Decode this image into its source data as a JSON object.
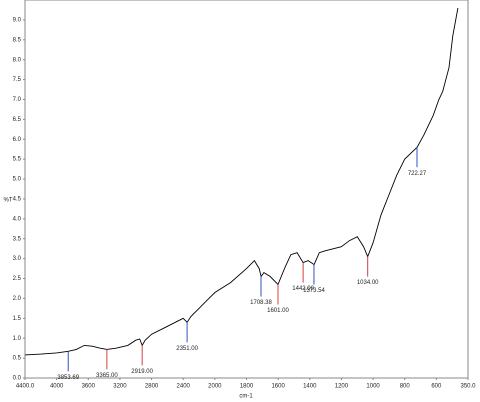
{
  "chart_data": {
    "type": "line",
    "x_label": "cm-1",
    "y_label": "%T",
    "x": [
      4400,
      4200,
      4000,
      3853.69,
      3750,
      3650,
      3550,
      3450,
      3365,
      3250,
      3100,
      3000,
      2950,
      2919,
      2880,
      2800,
      2700,
      2600,
      2500,
      2400,
      2351,
      2300,
      2200,
      2100,
      2000,
      1900,
      1800,
      1750,
      1720,
      1708,
      1690,
      1650,
      1601,
      1560,
      1520,
      1480,
      1442,
      1410,
      1373,
      1340,
      1300,
      1200,
      1150,
      1100,
      1060,
      1034,
      1000,
      950,
      900,
      850,
      800,
      722,
      680,
      620,
      580,
      550,
      500,
      470,
      430
    ],
    "series": [
      {
        "name": "%T",
        "color": "#000000",
        "values": [
          0.58,
          0.6,
          0.63,
          0.67,
          0.72,
          0.82,
          0.8,
          0.75,
          0.72,
          0.75,
          0.82,
          0.95,
          0.98,
          0.82,
          0.95,
          1.1,
          1.2,
          1.3,
          1.4,
          1.5,
          1.4,
          1.55,
          1.75,
          1.95,
          2.15,
          2.4,
          2.75,
          2.95,
          2.75,
          2.55,
          2.65,
          2.55,
          2.35,
          2.75,
          3.1,
          3.15,
          2.9,
          2.95,
          2.85,
          3.15,
          3.2,
          3.3,
          3.45,
          3.55,
          3.3,
          3.05,
          3.4,
          4.1,
          4.6,
          5.1,
          5.5,
          5.8,
          6.1,
          6.6,
          7.0,
          7.2,
          7.8,
          8.6,
          9.3
        ]
      }
    ],
    "peaks": [
      {
        "x": 3853.69,
        "y": 0.67,
        "label": "3853.69",
        "color": "#3050c0"
      },
      {
        "x": 3365,
        "y": 0.72,
        "label": "3365.00",
        "color": "#d04040"
      },
      {
        "x": 2919,
        "y": 0.82,
        "label": "2919.00",
        "color": "#d04040"
      },
      {
        "x": 2351,
        "y": 1.4,
        "label": "2351.00",
        "color": "#3050c0"
      },
      {
        "x": 1708.38,
        "y": 2.55,
        "label": "1708.38",
        "color": "#3050c0"
      },
      {
        "x": 1601,
        "y": 2.35,
        "label": "1601.00",
        "color": "#d04040"
      },
      {
        "x": 1442,
        "y": 2.9,
        "label": "1442.00",
        "color": "#d04040"
      },
      {
        "x": 1373.54,
        "y": 2.85,
        "label": "1373.54",
        "color": "#3050c0"
      },
      {
        "x": 1034,
        "y": 3.05,
        "label": "1034.00",
        "color": "#d04040"
      },
      {
        "x": 722.27,
        "y": 5.8,
        "label": "722.27",
        "color": "#3050c0"
      }
    ],
    "xlim": [
      4400,
      350
    ],
    "xticks": [
      {
        "value": 4400,
        "label": "4400.0"
      },
      4000,
      3600,
      3200,
      2800,
      2400,
      2000,
      1800,
      1600,
      1400,
      1200,
      1000,
      800,
      600,
      {
        "value": 350,
        "label": "350.0"
      }
    ],
    "ylim": [
      0,
      9.5
    ],
    "yticks": [
      {
        "value": 0,
        "label": "0.0"
      },
      {
        "value": 0.5,
        "label": "0.5"
      },
      {
        "value": 1,
        "label": "1.0"
      },
      {
        "value": 1.5,
        "label": "1.5"
      },
      {
        "value": 2,
        "label": "2.0"
      },
      {
        "value": 2.5,
        "label": "2.5"
      },
      {
        "value": 3,
        "label": "3.0"
      },
      {
        "value": 3.5,
        "label": "3.5"
      },
      {
        "value": 4,
        "label": "4.0"
      },
      {
        "value": 4.5,
        "label": "4.5"
      },
      {
        "value": 5,
        "label": "5.0"
      },
      {
        "value": 5.5,
        "label": "5.5"
      },
      {
        "value": 6,
        "label": "6.0"
      },
      {
        "value": 6.5,
        "label": "6.5"
      },
      {
        "value": 7,
        "label": "7.0"
      },
      {
        "value": 7.5,
        "label": "7.5"
      },
      {
        "value": 8,
        "label": "8.0"
      },
      {
        "value": 8.5,
        "label": "8.5"
      },
      {
        "value": 9,
        "label": "9.0"
      }
    ],
    "grid": false
  }
}
